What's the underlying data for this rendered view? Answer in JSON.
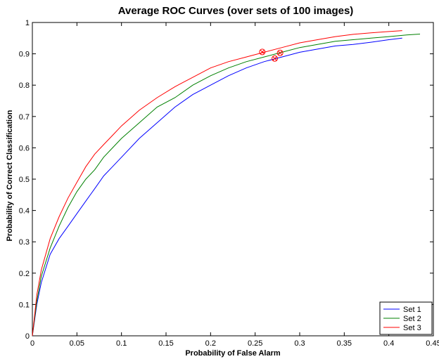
{
  "chart_data": {
    "type": "line",
    "title": "Average ROC Curves (over sets of 100 images)",
    "xlabel": "Probability of False Alarm",
    "ylabel": "Probability of Correct Classification",
    "xlim": [
      0,
      0.45
    ],
    "ylim": [
      0,
      1
    ],
    "x_ticks": [
      "0",
      "0.05",
      "0.1",
      "0.15",
      "0.2",
      "0.25",
      "0.3",
      "0.35",
      "0.4",
      "0.45"
    ],
    "y_ticks": [
      "0",
      "0.1",
      "0.2",
      "0.3",
      "0.4",
      "0.5",
      "0.6",
      "0.7",
      "0.8",
      "0.9",
      "1"
    ],
    "grid": false,
    "legend_position": "bottom-right",
    "series": [
      {
        "name": "Set 1",
        "color": "#0000ff",
        "x": [
          0,
          0.005,
          0.01,
          0.02,
          0.03,
          0.04,
          0.05,
          0.06,
          0.07,
          0.08,
          0.09,
          0.1,
          0.12,
          0.14,
          0.16,
          0.18,
          0.2,
          0.22,
          0.24,
          0.26,
          0.28,
          0.3,
          0.32,
          0.34,
          0.36,
          0.38,
          0.4,
          0.415
        ],
        "y": [
          0,
          0.1,
          0.17,
          0.26,
          0.31,
          0.35,
          0.39,
          0.43,
          0.47,
          0.51,
          0.54,
          0.57,
          0.63,
          0.68,
          0.73,
          0.77,
          0.8,
          0.83,
          0.855,
          0.875,
          0.89,
          0.905,
          0.915,
          0.925,
          0.93,
          0.937,
          0.945,
          0.95
        ]
      },
      {
        "name": "Set 2",
        "color": "#008000",
        "x": [
          0,
          0.005,
          0.01,
          0.02,
          0.03,
          0.04,
          0.05,
          0.06,
          0.07,
          0.08,
          0.09,
          0.1,
          0.12,
          0.14,
          0.16,
          0.18,
          0.2,
          0.22,
          0.24,
          0.26,
          0.28,
          0.3,
          0.32,
          0.34,
          0.36,
          0.38,
          0.4,
          0.42,
          0.435
        ],
        "y": [
          0,
          0.11,
          0.19,
          0.28,
          0.35,
          0.41,
          0.46,
          0.5,
          0.53,
          0.57,
          0.6,
          0.63,
          0.68,
          0.73,
          0.76,
          0.8,
          0.83,
          0.855,
          0.875,
          0.89,
          0.905,
          0.92,
          0.93,
          0.94,
          0.945,
          0.95,
          0.955,
          0.96,
          0.963
        ]
      },
      {
        "name": "Set 3",
        "color": "#ff0000",
        "x": [
          0,
          0.005,
          0.01,
          0.02,
          0.03,
          0.04,
          0.05,
          0.06,
          0.07,
          0.08,
          0.09,
          0.1,
          0.12,
          0.14,
          0.16,
          0.18,
          0.2,
          0.22,
          0.24,
          0.26,
          0.28,
          0.3,
          0.32,
          0.34,
          0.36,
          0.38,
          0.4,
          0.415
        ],
        "y": [
          0,
          0.13,
          0.21,
          0.31,
          0.38,
          0.44,
          0.49,
          0.54,
          0.58,
          0.61,
          0.64,
          0.67,
          0.72,
          0.76,
          0.795,
          0.825,
          0.855,
          0.875,
          0.89,
          0.905,
          0.92,
          0.935,
          0.945,
          0.955,
          0.962,
          0.967,
          0.971,
          0.974
        ]
      }
    ],
    "markers": [
      {
        "x": 0.258,
        "y": 0.906,
        "color": "#ff0000",
        "symbol": "circle-x"
      },
      {
        "x": 0.278,
        "y": 0.903,
        "color": "#ff0000",
        "symbol": "circle-x"
      },
      {
        "x": 0.272,
        "y": 0.885,
        "color": "#ff0000",
        "symbol": "circle-x"
      }
    ]
  }
}
